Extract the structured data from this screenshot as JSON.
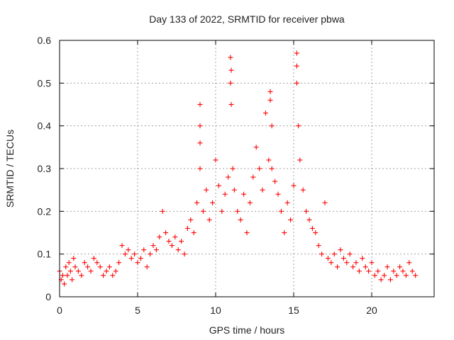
{
  "chart_data": {
    "type": "scatter",
    "title": "Day 133 of 2022, SRMTID for receiver pbwa",
    "xlabel": "GPS time / hours",
    "ylabel": "SRMTID / TECUs",
    "xlim": [
      0,
      24
    ],
    "ylim": [
      0,
      0.6
    ],
    "xticks": [
      0,
      5,
      10,
      15,
      20
    ],
    "yticks": [
      0,
      0.1,
      0.2,
      0.3,
      0.4,
      0.5,
      0.6
    ],
    "grid": true,
    "marker": "+",
    "color": "#ff0000",
    "series": [
      {
        "name": "pbwa",
        "x": [
          0.0,
          0.1,
          0.2,
          0.3,
          0.4,
          0.5,
          0.6,
          0.7,
          0.8,
          0.9,
          1.0,
          1.2,
          1.4,
          1.6,
          1.8,
          2.0,
          2.2,
          2.4,
          2.6,
          2.8,
          3.0,
          3.2,
          3.4,
          3.6,
          3.8,
          4.0,
          4.2,
          4.4,
          4.6,
          4.8,
          5.0,
          5.2,
          5.4,
          5.6,
          5.8,
          6.0,
          6.2,
          6.4,
          6.6,
          6.8,
          7.0,
          7.2,
          7.4,
          7.6,
          7.8,
          8.0,
          8.2,
          8.4,
          8.6,
          8.8,
          9.0,
          9.0,
          9.0,
          9.0,
          9.2,
          9.4,
          9.6,
          9.8,
          10.0,
          10.2,
          10.4,
          10.6,
          10.8,
          10.95,
          10.95,
          11.0,
          11.0,
          11.1,
          11.2,
          11.4,
          11.6,
          11.8,
          12.0,
          12.2,
          12.4,
          12.6,
          12.8,
          13.0,
          13.2,
          13.4,
          13.5,
          13.5,
          13.6,
          13.6,
          13.8,
          14.0,
          14.2,
          14.4,
          14.6,
          14.8,
          15.0,
          15.2,
          15.2,
          15.2,
          15.3,
          15.4,
          15.6,
          15.8,
          16.0,
          16.2,
          16.4,
          16.6,
          16.8,
          17.0,
          17.2,
          17.4,
          17.6,
          17.8,
          18.0,
          18.2,
          18.4,
          18.6,
          18.8,
          19.0,
          19.2,
          19.4,
          19.6,
          19.8,
          20.0,
          20.2,
          20.4,
          20.6,
          20.8,
          21.0,
          21.2,
          21.4,
          21.6,
          21.8,
          22.0,
          22.2,
          22.4,
          22.6,
          22.8
        ],
        "y": [
          0.06,
          0.04,
          0.05,
          0.03,
          0.07,
          0.05,
          0.08,
          0.06,
          0.04,
          0.09,
          0.07,
          0.06,
          0.05,
          0.08,
          0.07,
          0.06,
          0.09,
          0.08,
          0.07,
          0.05,
          0.06,
          0.07,
          0.05,
          0.06,
          0.08,
          0.12,
          0.1,
          0.11,
          0.09,
          0.1,
          0.08,
          0.09,
          0.11,
          0.07,
          0.1,
          0.12,
          0.11,
          0.14,
          0.2,
          0.15,
          0.13,
          0.12,
          0.14,
          0.11,
          0.13,
          0.1,
          0.16,
          0.18,
          0.15,
          0.22,
          0.45,
          0.4,
          0.36,
          0.3,
          0.2,
          0.25,
          0.18,
          0.22,
          0.32,
          0.26,
          0.2,
          0.24,
          0.28,
          0.56,
          0.5,
          0.53,
          0.45,
          0.3,
          0.25,
          0.2,
          0.18,
          0.24,
          0.15,
          0.22,
          0.28,
          0.35,
          0.3,
          0.25,
          0.43,
          0.32,
          0.48,
          0.46,
          0.4,
          0.3,
          0.27,
          0.24,
          0.2,
          0.15,
          0.22,
          0.18,
          0.26,
          0.57,
          0.54,
          0.5,
          0.4,
          0.32,
          0.25,
          0.2,
          0.18,
          0.16,
          0.15,
          0.12,
          0.1,
          0.22,
          0.09,
          0.08,
          0.1,
          0.07,
          0.11,
          0.09,
          0.08,
          0.1,
          0.07,
          0.08,
          0.06,
          0.09,
          0.07,
          0.06,
          0.08,
          0.05,
          0.06,
          0.04,
          0.05,
          0.07,
          0.04,
          0.06,
          0.05,
          0.07,
          0.06,
          0.05,
          0.08,
          0.06,
          0.05
        ]
      }
    ]
  }
}
